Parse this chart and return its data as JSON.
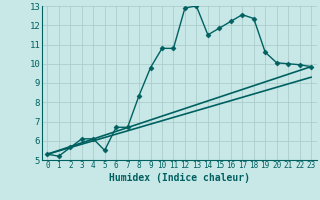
{
  "title": "",
  "xlabel": "Humidex (Indice chaleur)",
  "background_color": "#c8e8e8",
  "grid_color": "#a8c8c8",
  "line_color": "#006060",
  "xlim": [
    -0.5,
    23.5
  ],
  "ylim": [
    5,
    13
  ],
  "xticks": [
    0,
    1,
    2,
    3,
    4,
    5,
    6,
    7,
    8,
    9,
    10,
    11,
    12,
    13,
    14,
    15,
    16,
    17,
    18,
    19,
    20,
    21,
    22,
    23
  ],
  "yticks": [
    5,
    6,
    7,
    8,
    9,
    10,
    11,
    12,
    13
  ],
  "series": [
    {
      "x": [
        0,
        1,
        2,
        3,
        4,
        5,
        6,
        7,
        8,
        9,
        10,
        11,
        12,
        13,
        14,
        15,
        16,
        17,
        18,
        19,
        20,
        21,
        22,
        23
      ],
      "y": [
        5.3,
        5.2,
        5.65,
        6.1,
        6.1,
        5.5,
        6.7,
        6.7,
        8.35,
        9.8,
        10.8,
        10.8,
        12.9,
        13.0,
        11.5,
        11.85,
        12.2,
        12.55,
        12.35,
        10.6,
        10.05,
        10.0,
        9.95,
        9.85
      ],
      "marker": "D",
      "markersize": 2.5,
      "linewidth": 1.0
    },
    {
      "x": [
        0,
        23
      ],
      "y": [
        5.3,
        9.85
      ],
      "marker": false,
      "linewidth": 1.2
    },
    {
      "x": [
        0,
        23
      ],
      "y": [
        5.3,
        9.3
      ],
      "marker": false,
      "linewidth": 1.2
    }
  ]
}
